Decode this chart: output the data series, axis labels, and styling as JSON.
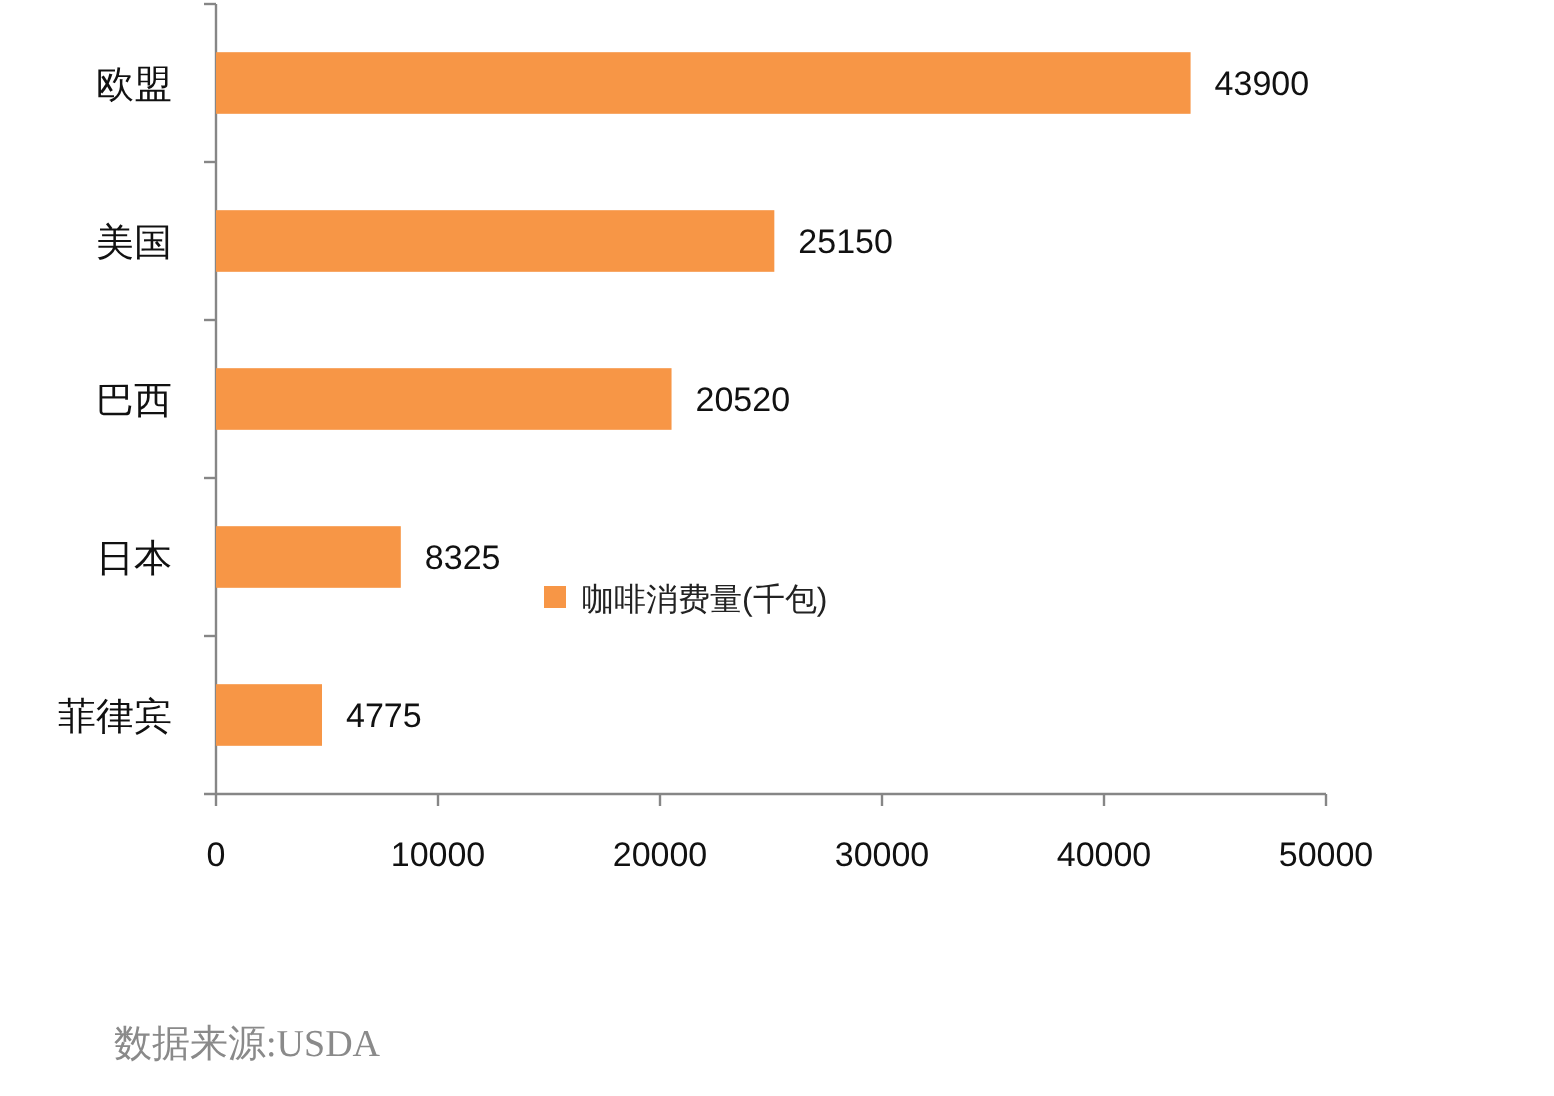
{
  "chart_data": {
    "type": "bar",
    "orientation": "horizontal",
    "categories": [
      "欧盟",
      "美国",
      "巴西",
      "日本",
      "菲律宾"
    ],
    "series": [
      {
        "name": "咖啡消费量(千包)",
        "color": "#f79646",
        "values": [
          43900,
          25150,
          20520,
          8325,
          4775
        ]
      }
    ],
    "xlim": [
      0,
      50000
    ],
    "xticks": [
      0,
      10000,
      20000,
      30000,
      40000,
      50000
    ],
    "data_labels": true,
    "legend": "center",
    "annotations": [
      "数据来源:USDA"
    ]
  }
}
